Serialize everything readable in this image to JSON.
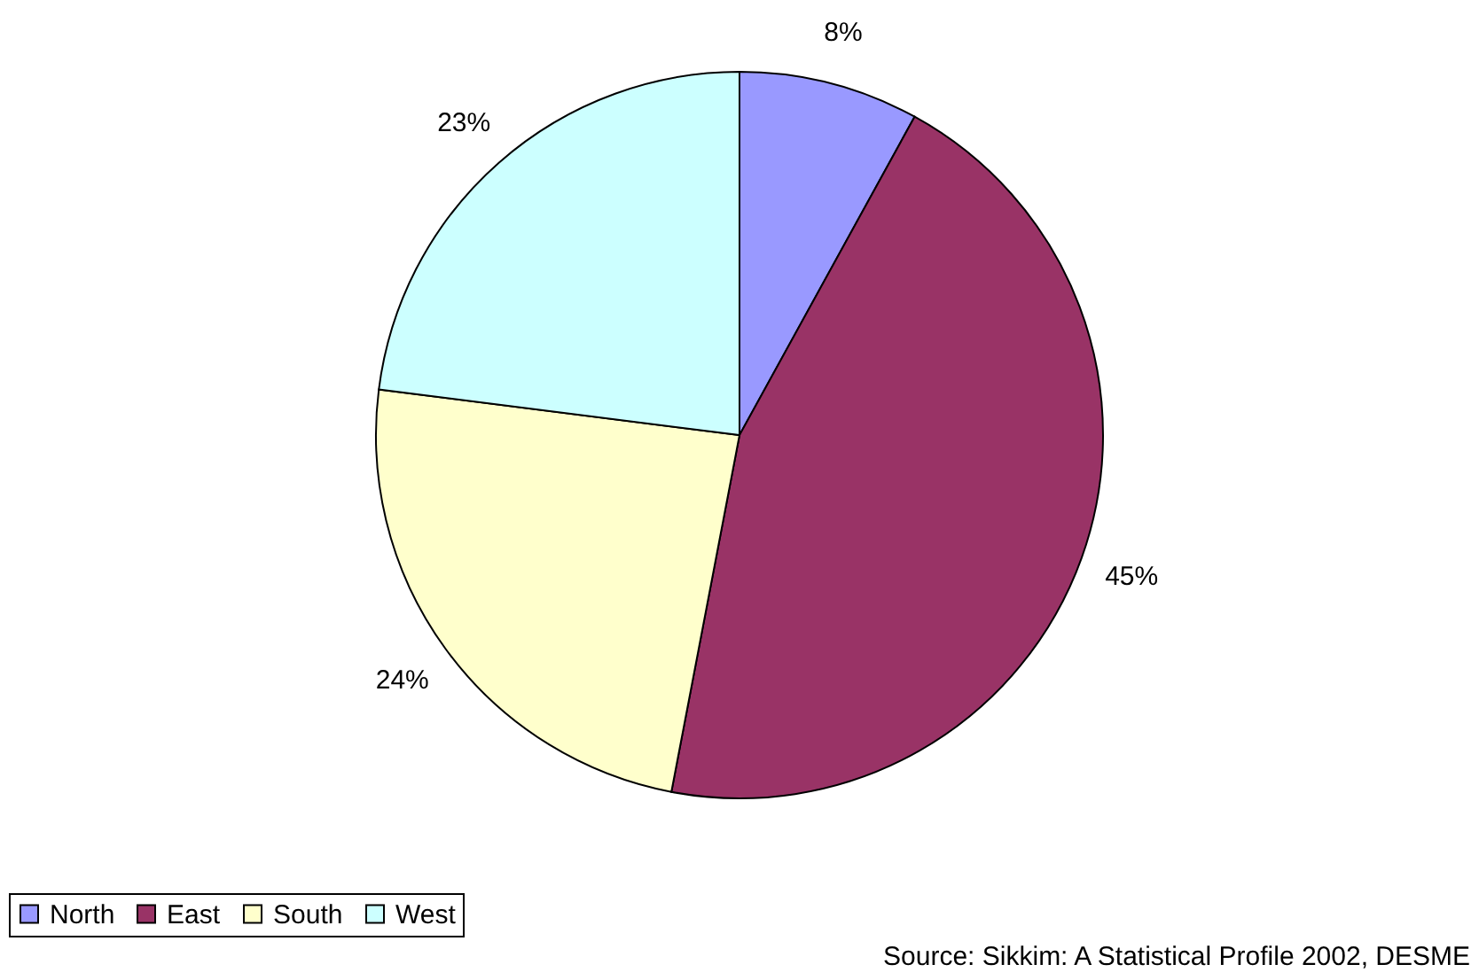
{
  "chart_data": {
    "type": "pie",
    "categories": [
      "North",
      "East",
      "South",
      "West"
    ],
    "values": [
      8,
      45,
      24,
      23
    ],
    "colors": [
      "#9999ff",
      "#993366",
      "#ffffcc",
      "#ccffff"
    ],
    "value_labels": [
      "8%",
      "45%",
      "24%",
      "23%"
    ],
    "legend": "bottom",
    "annotations": [
      "Source: Sikkim: A Statistical Profile 2002, DESME"
    ]
  }
}
